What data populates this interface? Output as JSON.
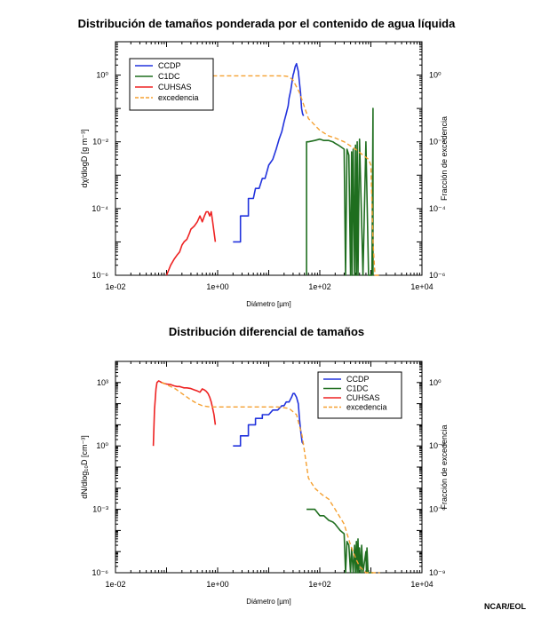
{
  "credit": "NCAR/EOL",
  "chart_data": [
    {
      "type": "line",
      "title": "Distribución de tamaños ponderada por el contenido de agua líquida",
      "xlabel": "Diámetro [µm]",
      "ylabel": "dχ/dlogD [g m⁻³]",
      "y2label": "Fracción de excedencia",
      "x_scale": "log",
      "xlim": [
        0.01,
        10000
      ],
      "ylim": [
        1e-06,
        10
      ],
      "y2lim": [
        1e-06,
        10
      ],
      "x_ticks": [
        "1e-02",
        "1e+00",
        "1e+02",
        "1e+04"
      ],
      "y_ticks": [
        "10⁻⁶",
        "10⁻⁴",
        "10⁻²",
        "10⁰"
      ],
      "y2_ticks": [
        "10⁻⁶",
        "10⁻⁴",
        "10⁻²",
        "10⁰"
      ],
      "legend_position": "top-left",
      "series": [
        {
          "name": "CCDP",
          "color": "#2233dd",
          "axis": "left",
          "x": [
            2.0,
            2.8,
            2.8,
            4.0,
            4.0,
            5.0,
            5.5,
            6.5,
            7.5,
            8.5,
            10,
            12,
            14,
            16,
            18,
            20,
            22,
            24,
            25,
            27,
            28,
            30,
            31,
            33,
            35,
            36,
            38,
            40,
            42,
            44,
            46,
            48
          ],
          "y": [
            1e-05,
            1e-05,
            6e-05,
            6e-05,
            0.0002,
            0.0002,
            0.0004,
            0.0004,
            0.0008,
            0.0008,
            0.002,
            0.003,
            0.006,
            0.012,
            0.02,
            0.04,
            0.07,
            0.12,
            0.2,
            0.35,
            0.5,
            1.0,
            1.2,
            1.8,
            2.2,
            1.8,
            1.3,
            0.6,
            0.3,
            0.1,
            0.07,
            0.06
          ]
        },
        {
          "name": "C1DC",
          "color": "#1f6e1f",
          "axis": "left",
          "x": [
            55,
            55,
            60,
            80,
            100,
            120,
            150,
            180,
            200,
            230,
            260,
            300,
            320,
            340,
            370,
            400,
            420,
            430,
            450,
            480,
            500,
            520,
            540,
            560,
            600,
            700,
            800,
            900,
            950,
            1000,
            1050,
            1100,
            1100
          ],
          "y": [
            1e-06,
            0.01,
            0.01,
            0.011,
            0.012,
            0.011,
            0.011,
            0.01,
            0.009,
            0.008,
            0.007,
            0.006,
            1e-06,
            0.006,
            0.004,
            1e-06,
            0.005,
            1e-06,
            0.006,
            1e-06,
            0.008,
            1e-06,
            0.01,
            1e-06,
            0.012,
            1e-06,
            0.01,
            1e-06,
            1e-06,
            1e-06,
            1e-06,
            0.1,
            1e-06
          ]
        },
        {
          "name": "CUHSAS",
          "color": "#ee2222",
          "axis": "left",
          "x": [
            0.1,
            0.12,
            0.14,
            0.16,
            0.18,
            0.2,
            0.22,
            0.25,
            0.28,
            0.3,
            0.35,
            0.4,
            0.45,
            0.5,
            0.55,
            0.6,
            0.65,
            0.7,
            0.75,
            0.8,
            0.85,
            0.9
          ],
          "y": [
            1e-06,
            2e-06,
            3e-06,
            4e-06,
            5e-06,
            8e-06,
            1e-05,
            1.2e-05,
            1.8e-05,
            2.4e-05,
            3e-05,
            4e-05,
            6e-05,
            4e-05,
            6e-05,
            8e-05,
            8e-05,
            6e-05,
            8e-05,
            4e-05,
            2e-05,
            1e-05
          ]
        },
        {
          "name": "excedencia",
          "color": "#f5a030",
          "axis": "right",
          "dashed": true,
          "x": [
            0.8,
            1.5,
            3,
            6,
            10,
            15,
            20,
            25,
            30,
            40,
            60,
            100,
            150,
            200,
            300,
            500,
            700,
            900,
            1000,
            1100,
            1200,
            1500
          ],
          "y": [
            0.95,
            0.95,
            0.95,
            0.95,
            0.95,
            0.95,
            0.94,
            0.9,
            0.7,
            0.3,
            0.05,
            0.022,
            0.015,
            0.013,
            0.01,
            0.006,
            0.004,
            0.003,
            0.002,
            1e-05,
            1e-06,
            1e-06
          ]
        }
      ]
    },
    {
      "type": "line",
      "title": "Distribución diferencial de tamaños",
      "xlabel": "Diámetro [µm]",
      "ylabel": "dN/dlog₁₀D [cm⁻³]",
      "y2label": "Fracción de excedencia",
      "x_scale": "log",
      "xlim": [
        0.01,
        10000
      ],
      "ylim": [
        1e-06,
        10000
      ],
      "y2lim": [
        1e-09,
        10
      ],
      "x_ticks": [
        "1e-02",
        "1e+00",
        "1e+02",
        "1e+04"
      ],
      "y_ticks": [
        "10⁻⁶",
        "10⁻³",
        "10⁰",
        "10³"
      ],
      "y2_ticks": [
        "10⁻⁹",
        "10⁻⁶",
        "10⁻³",
        "10⁰"
      ],
      "legend_position": "top-right",
      "series": [
        {
          "name": "CCDP",
          "color": "#2233dd",
          "axis": "left",
          "x": [
            2.0,
            2.8,
            2.8,
            4.0,
            4.0,
            5.5,
            5.5,
            7.5,
            7.5,
            10,
            12,
            15,
            18,
            20,
            22,
            25,
            28,
            30,
            32,
            35,
            38,
            40,
            42,
            45,
            48
          ],
          "y": [
            1,
            1,
            3,
            3,
            10,
            10,
            20,
            20,
            30,
            30,
            50,
            50,
            80,
            80,
            120,
            120,
            200,
            300,
            300,
            200,
            100,
            20,
            6,
            1.5,
            1.2
          ]
        },
        {
          "name": "C1DC",
          "color": "#1f6e1f",
          "axis": "left",
          "x": [
            55,
            60,
            80,
            100,
            120,
            150,
            180,
            200,
            250,
            300,
            320,
            340,
            370,
            400,
            420,
            450,
            480,
            500,
            520,
            540,
            560,
            580,
            600,
            640,
            660,
            700,
            800,
            820,
            840,
            880,
            900,
            1000,
            1100
          ],
          "y": [
            0.001,
            0.001,
            0.001,
            0.0005,
            0.0005,
            0.0003,
            0.00025,
            0.0002,
            0.0001,
            7e-05,
            1e-06,
            3e-05,
            2e-05,
            1e-06,
            1.5e-05,
            1e-06,
            2e-05,
            1e-06,
            3e-05,
            1e-06,
            4e-05,
            1e-06,
            1.5e-05,
            1e-06,
            2e-05,
            1e-06,
            1e-05,
            1e-06,
            1.5e-05,
            1e-06,
            1e-06,
            1e-06,
            1e-06
          ]
        },
        {
          "name": "CUHSAS",
          "color": "#ee2222",
          "axis": "left",
          "x": [
            0.055,
            0.058,
            0.062,
            0.065,
            0.07,
            0.075,
            0.08,
            0.09,
            0.1,
            0.12,
            0.14,
            0.16,
            0.18,
            0.2,
            0.22,
            0.25,
            0.3,
            0.35,
            0.4,
            0.45,
            0.5,
            0.55,
            0.6,
            0.65,
            0.7,
            0.75,
            0.8,
            0.85,
            0.9
          ],
          "y": [
            1,
            50,
            500,
            1000,
            1200,
            1100,
            1000,
            900,
            850,
            800,
            700,
            650,
            650,
            600,
            560,
            560,
            520,
            450,
            400,
            350,
            500,
            450,
            380,
            300,
            200,
            120,
            60,
            30,
            10
          ]
        },
        {
          "name": "excedencia",
          "color": "#f5a030",
          "axis": "right",
          "dashed": true,
          "x": [
            0.08,
            0.1,
            0.15,
            0.2,
            0.3,
            0.4,
            0.5,
            0.7,
            1,
            2,
            4,
            8,
            15,
            25,
            35,
            45,
            60,
            80,
            110,
            150,
            200,
            300,
            400,
            500,
            600,
            800,
            1000,
            1500
          ],
          "y": [
            1.0,
            0.8,
            0.5,
            0.3,
            0.15,
            0.1,
            0.08,
            0.07,
            0.07,
            0.07,
            0.07,
            0.07,
            0.07,
            0.06,
            0.03,
            0.003,
            3e-05,
            1e-05,
            5e-06,
            3e-06,
            1e-06,
            2e-07,
            2e-08,
            5e-09,
            2e-09,
            1e-09,
            1e-09,
            1e-09
          ]
        }
      ]
    }
  ]
}
